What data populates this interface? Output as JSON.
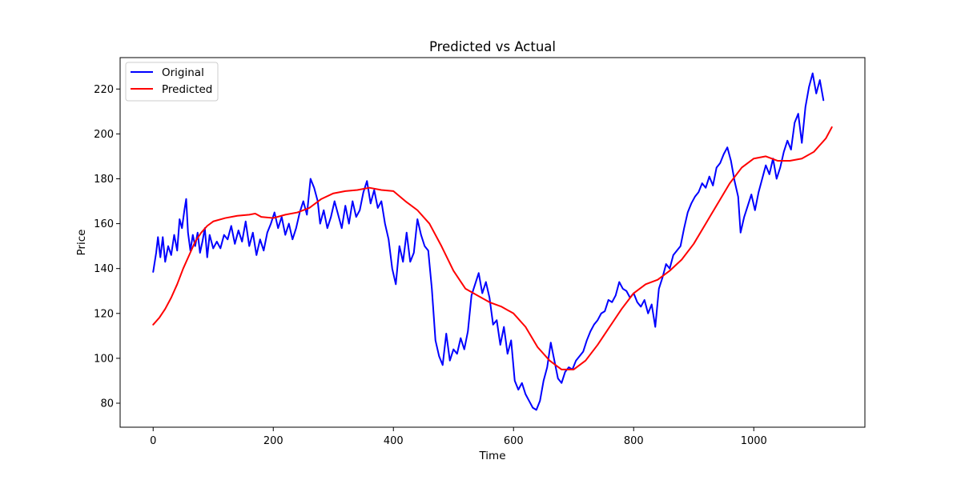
{
  "chart_data": {
    "type": "line",
    "title": "Predicted vs Actual",
    "xlabel": "Time",
    "ylabel": "Price",
    "xlim": [
      -55,
      1185
    ],
    "ylim": [
      69.3,
      234.0
    ],
    "xticks": [
      0,
      200,
      400,
      600,
      800,
      1000
    ],
    "yticks": [
      80,
      100,
      120,
      140,
      160,
      180,
      200,
      220
    ],
    "grid": false,
    "legend": "top-left",
    "series": [
      {
        "name": "Original",
        "color": "#0000ff",
        "points": [
          [
            0,
            138.5
          ],
          [
            5,
            147
          ],
          [
            8,
            154
          ],
          [
            12,
            145
          ],
          [
            16,
            154
          ],
          [
            20,
            143
          ],
          [
            25,
            150
          ],
          [
            30,
            146
          ],
          [
            35,
            155
          ],
          [
            40,
            148
          ],
          [
            44,
            162
          ],
          [
            48,
            158
          ],
          [
            52,
            166
          ],
          [
            55,
            171
          ],
          [
            58,
            156
          ],
          [
            62,
            148
          ],
          [
            66,
            155
          ],
          [
            70,
            150
          ],
          [
            74,
            156
          ],
          [
            78,
            147
          ],
          [
            82,
            152
          ],
          [
            86,
            158
          ],
          [
            90,
            145
          ],
          [
            94,
            155
          ],
          [
            100,
            149
          ],
          [
            106,
            152
          ],
          [
            112,
            149
          ],
          [
            118,
            155
          ],
          [
            124,
            153
          ],
          [
            130,
            159
          ],
          [
            136,
            151
          ],
          [
            142,
            157
          ],
          [
            148,
            152
          ],
          [
            154,
            161
          ],
          [
            160,
            150
          ],
          [
            166,
            156
          ],
          [
            172,
            146
          ],
          [
            178,
            153
          ],
          [
            184,
            148
          ],
          [
            190,
            156
          ],
          [
            196,
            160
          ],
          [
            202,
            165
          ],
          [
            208,
            158
          ],
          [
            214,
            163
          ],
          [
            220,
            155
          ],
          [
            226,
            160
          ],
          [
            232,
            153
          ],
          [
            238,
            158
          ],
          [
            244,
            165
          ],
          [
            250,
            170
          ],
          [
            256,
            164
          ],
          [
            262,
            180
          ],
          [
            268,
            176
          ],
          [
            274,
            170
          ],
          [
            278,
            160
          ],
          [
            284,
            166
          ],
          [
            290,
            158
          ],
          [
            296,
            163
          ],
          [
            302,
            170
          ],
          [
            308,
            164
          ],
          [
            314,
            158
          ],
          [
            320,
            168
          ],
          [
            326,
            160
          ],
          [
            332,
            170
          ],
          [
            338,
            163
          ],
          [
            344,
            166
          ],
          [
            350,
            174
          ],
          [
            356,
            179
          ],
          [
            362,
            169
          ],
          [
            368,
            175
          ],
          [
            374,
            167
          ],
          [
            380,
            170
          ],
          [
            386,
            160
          ],
          [
            392,
            153
          ],
          [
            398,
            140
          ],
          [
            404,
            133
          ],
          [
            410,
            150
          ],
          [
            416,
            143
          ],
          [
            422,
            156
          ],
          [
            428,
            143
          ],
          [
            434,
            147
          ],
          [
            440,
            162
          ],
          [
            446,
            155
          ],
          [
            452,
            150
          ],
          [
            458,
            148
          ],
          [
            464,
            131
          ],
          [
            470,
            108
          ],
          [
            476,
            101
          ],
          [
            482,
            97
          ],
          [
            488,
            111
          ],
          [
            494,
            99
          ],
          [
            500,
            104
          ],
          [
            506,
            102
          ],
          [
            512,
            109
          ],
          [
            518,
            104
          ],
          [
            524,
            112
          ],
          [
            530,
            128
          ],
          [
            536,
            133
          ],
          [
            542,
            138
          ],
          [
            548,
            129
          ],
          [
            554,
            134
          ],
          [
            560,
            127
          ],
          [
            566,
            115
          ],
          [
            572,
            117
          ],
          [
            578,
            106
          ],
          [
            584,
            114
          ],
          [
            590,
            102
          ],
          [
            596,
            108
          ],
          [
            602,
            90
          ],
          [
            608,
            86
          ],
          [
            614,
            89
          ],
          [
            620,
            84
          ],
          [
            626,
            81
          ],
          [
            632,
            78
          ],
          [
            638,
            77
          ],
          [
            644,
            81
          ],
          [
            650,
            90
          ],
          [
            656,
            96
          ],
          [
            662,
            107
          ],
          [
            668,
            99
          ],
          [
            674,
            91
          ],
          [
            680,
            89
          ],
          [
            686,
            94
          ],
          [
            692,
            96
          ],
          [
            698,
            95
          ],
          [
            704,
            99
          ],
          [
            710,
            101
          ],
          [
            716,
            103
          ],
          [
            722,
            108
          ],
          [
            728,
            112
          ],
          [
            734,
            115
          ],
          [
            740,
            117
          ],
          [
            746,
            120
          ],
          [
            752,
            121
          ],
          [
            758,
            126
          ],
          [
            764,
            125
          ],
          [
            770,
            128
          ],
          [
            776,
            134
          ],
          [
            782,
            131
          ],
          [
            788,
            130
          ],
          [
            794,
            127
          ],
          [
            800,
            129
          ],
          [
            806,
            125
          ],
          [
            812,
            123
          ],
          [
            818,
            126
          ],
          [
            824,
            120
          ],
          [
            830,
            124
          ],
          [
            836,
            114
          ],
          [
            842,
            131
          ],
          [
            848,
            136
          ],
          [
            854,
            142
          ],
          [
            860,
            140
          ],
          [
            866,
            146
          ],
          [
            872,
            148
          ],
          [
            878,
            150
          ],
          [
            884,
            158
          ],
          [
            890,
            165
          ],
          [
            896,
            169
          ],
          [
            902,
            172
          ],
          [
            908,
            174
          ],
          [
            914,
            178
          ],
          [
            920,
            176
          ],
          [
            926,
            181
          ],
          [
            932,
            177
          ],
          [
            938,
            185
          ],
          [
            944,
            187
          ],
          [
            950,
            191
          ],
          [
            956,
            194
          ],
          [
            962,
            188
          ],
          [
            968,
            179
          ],
          [
            974,
            172
          ],
          [
            978,
            156
          ],
          [
            984,
            163
          ],
          [
            990,
            168
          ],
          [
            996,
            173
          ],
          [
            1002,
            166
          ],
          [
            1008,
            174
          ],
          [
            1014,
            180
          ],
          [
            1020,
            186
          ],
          [
            1026,
            182
          ],
          [
            1032,
            189
          ],
          [
            1038,
            180
          ],
          [
            1044,
            185
          ],
          [
            1050,
            192
          ],
          [
            1056,
            197
          ],
          [
            1062,
            193
          ],
          [
            1068,
            205
          ],
          [
            1074,
            209
          ],
          [
            1080,
            196
          ],
          [
            1086,
            212
          ],
          [
            1092,
            221
          ],
          [
            1098,
            227
          ],
          [
            1104,
            218
          ],
          [
            1110,
            224
          ],
          [
            1116,
            215
          ]
        ]
      },
      {
        "name": "Predicted",
        "color": "#ff0000",
        "points": [
          [
            0,
            115
          ],
          [
            10,
            118
          ],
          [
            20,
            122
          ],
          [
            30,
            127
          ],
          [
            40,
            133
          ],
          [
            50,
            140
          ],
          [
            60,
            146
          ],
          [
            70,
            152
          ],
          [
            80,
            156
          ],
          [
            90,
            159
          ],
          [
            100,
            161
          ],
          [
            120,
            162.5
          ],
          [
            140,
            163.5
          ],
          [
            160,
            164
          ],
          [
            170,
            164.5
          ],
          [
            180,
            163
          ],
          [
            200,
            162.5
          ],
          [
            220,
            164
          ],
          [
            240,
            165
          ],
          [
            260,
            167
          ],
          [
            280,
            171
          ],
          [
            300,
            173.5
          ],
          [
            320,
            174.5
          ],
          [
            340,
            175
          ],
          [
            360,
            176
          ],
          [
            380,
            175
          ],
          [
            400,
            174.5
          ],
          [
            420,
            170
          ],
          [
            440,
            166
          ],
          [
            460,
            160
          ],
          [
            480,
            150
          ],
          [
            500,
            139
          ],
          [
            520,
            131
          ],
          [
            540,
            128
          ],
          [
            560,
            125
          ],
          [
            580,
            123
          ],
          [
            600,
            120
          ],
          [
            620,
            114
          ],
          [
            640,
            105
          ],
          [
            660,
            99
          ],
          [
            680,
            95
          ],
          [
            700,
            95
          ],
          [
            720,
            99
          ],
          [
            740,
            106
          ],
          [
            760,
            114
          ],
          [
            780,
            122
          ],
          [
            800,
            129
          ],
          [
            820,
            133
          ],
          [
            840,
            135
          ],
          [
            860,
            139
          ],
          [
            880,
            144
          ],
          [
            900,
            151
          ],
          [
            920,
            160
          ],
          [
            940,
            169
          ],
          [
            960,
            178
          ],
          [
            980,
            185
          ],
          [
            1000,
            189
          ],
          [
            1020,
            190
          ],
          [
            1040,
            188
          ],
          [
            1060,
            188
          ],
          [
            1080,
            189
          ],
          [
            1100,
            192
          ],
          [
            1120,
            198
          ],
          [
            1130,
            203
          ]
        ]
      }
    ]
  }
}
